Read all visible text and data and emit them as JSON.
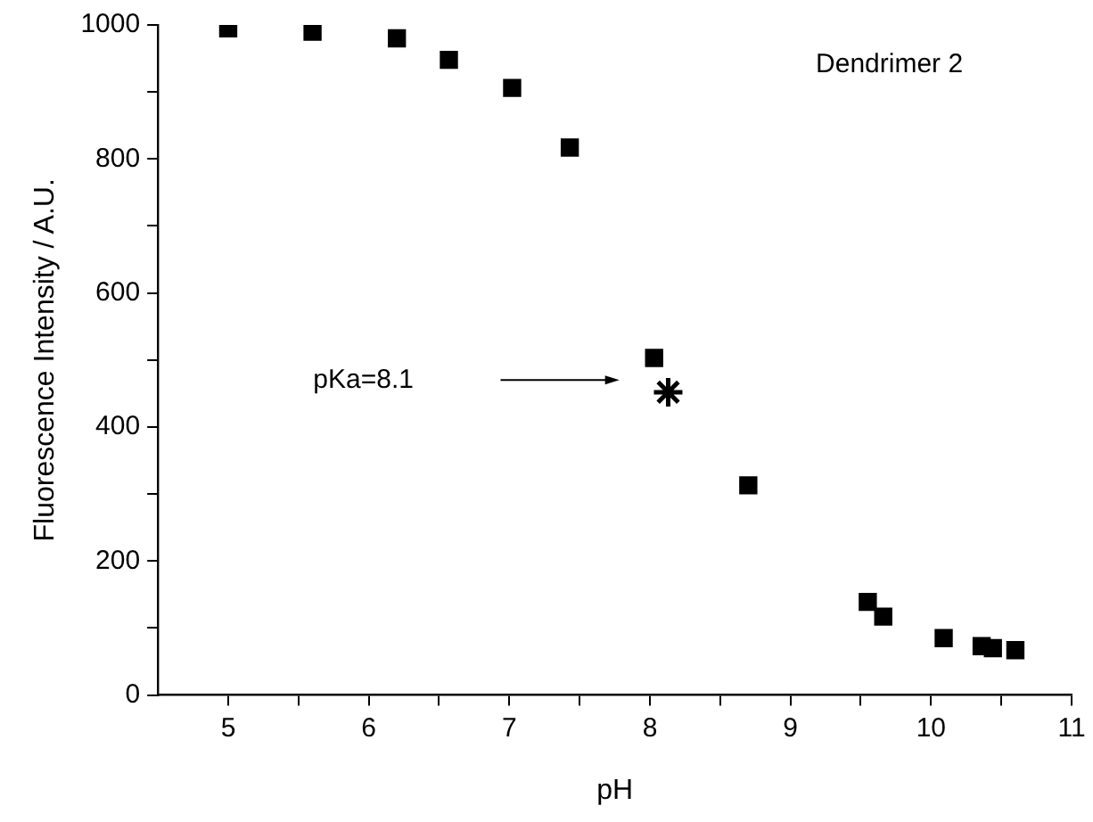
{
  "chart_data": {
    "type": "scatter",
    "xlabel": "pH",
    "ylabel": "Fluorescence Intensity / A.U.",
    "series": [
      {
        "color": "#000000",
        "marker": "square",
        "x": [
          5.0,
          5.6,
          6.2,
          6.57,
          7.02,
          7.43,
          8.03,
          8.7,
          9.55,
          9.66,
          10.09,
          10.36,
          10.44,
          10.6
        ],
        "values": [
          995,
          990,
          980,
          948,
          906,
          817,
          503,
          313,
          139,
          117,
          85,
          73,
          70,
          67
        ]
      },
      {
        "color": "#000000",
        "marker": "cross",
        "x": [
          8.13
        ],
        "values": [
          452
        ]
      }
    ],
    "xlim": [
      4.5,
      11
    ],
    "xticks": [
      5,
      {
        "value": 5.5,
        "label": null
      },
      6,
      {
        "value": 6.5,
        "label": null
      },
      7,
      {
        "value": 7.5,
        "label": null
      },
      8,
      {
        "value": 8.5,
        "label": null
      },
      9,
      {
        "value": 9.5,
        "label": null
      },
      10,
      {
        "value": 10.5,
        "label": null
      },
      11
    ],
    "ylim": [
      0,
      1000
    ],
    "yticks": [
      0,
      {
        "value": 100,
        "label": null
      },
      200,
      {
        "value": 300,
        "label": null
      },
      400,
      {
        "value": 500,
        "label": null
      },
      600,
      {
        "value": 700,
        "label": null
      },
      800,
      {
        "value": 900,
        "label": null
      },
      1000
    ],
    "grid": false,
    "legend": false,
    "annotations": [
      "Dendrimer 2",
      "pKa=8.1"
    ]
  }
}
